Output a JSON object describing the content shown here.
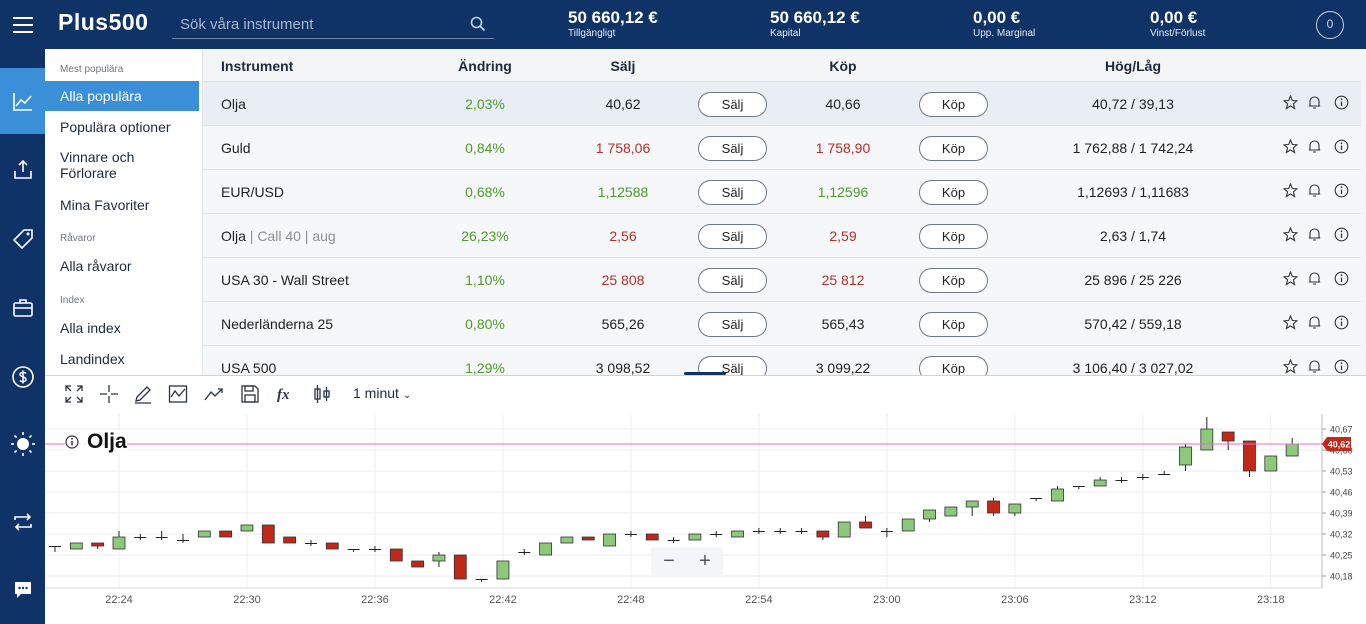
{
  "brand": {
    "logo_text": "Plus500"
  },
  "search": {
    "placeholder": "Sök våra instrument"
  },
  "stats": [
    {
      "value": "50 660,12 €",
      "label": "Tillgängligt"
    },
    {
      "value": "50 660,12 €",
      "label": "Kapital"
    },
    {
      "value": "0,00 €",
      "label": "Upp. Marginal"
    },
    {
      "value": "0,00 €",
      "label": "Vinst/Förlust"
    }
  ],
  "account": {
    "badge": "0"
  },
  "rail": [
    "chart-line-icon",
    "trade-arrows-icon",
    "tag-icon",
    "briefcase-icon",
    "dollar-circle-icon",
    "sun-icon",
    "transfer-icon",
    "chat-icon"
  ],
  "sidebar": {
    "sec_popular": "Mest populära",
    "popular_all": "Alla populära",
    "popular_options": "Populära optioner",
    "winners": "Vinnare och Förlorare",
    "favorites": "Mina Favoriter",
    "sec_commodities": "Råvaror",
    "commodities_all": "Alla råvaror",
    "sec_index": "Index",
    "index_all": "Alla index",
    "index_country": "Landindex"
  },
  "table": {
    "headers": {
      "instrument": "Instrument",
      "change": "Ändring",
      "sell": "Sälj",
      "buy": "Köp",
      "highlow": "Hög/Låg"
    },
    "sell_btn": "Sälj",
    "buy_btn": "Köp",
    "rows": [
      {
        "name": "Olja",
        "sub": "",
        "change": "2,03%",
        "sell": "40,62",
        "buy": "40,66",
        "price_color": "neutral",
        "highlow": "40,72 / 39,13"
      },
      {
        "name": "Guld",
        "sub": "",
        "change": "0,84%",
        "sell": "1 758,06",
        "buy": "1 758,90",
        "price_color": "red",
        "highlow": "1 762,88 / 1 742,24"
      },
      {
        "name": "EUR/USD",
        "sub": "",
        "change": "0,68%",
        "sell": "1,12588",
        "buy": "1,12596",
        "price_color": "green",
        "highlow": "1,12693 / 1,11683"
      },
      {
        "name": "Olja",
        "sub": " | Call 40 | aug",
        "change": "26,23%",
        "sell": "2,56",
        "buy": "2,59",
        "price_color": "red",
        "highlow": "2,63 / 1,74"
      },
      {
        "name": "USA 30 - Wall Street",
        "sub": "",
        "change": "1,10%",
        "sell": "25 808",
        "buy": "25 812",
        "price_color": "red",
        "highlow": "25 896 / 25 226"
      },
      {
        "name": "Nederländerna 25",
        "sub": "",
        "change": "0,80%",
        "sell": "565,26",
        "buy": "565,43",
        "price_color": "neutral",
        "highlow": "570,42 / 559,18"
      },
      {
        "name": "USA 500",
        "sub": "",
        "change": "1,29%",
        "sell": "3 098,52",
        "buy": "3 099,22",
        "price_color": "neutral",
        "highlow": "3 106,40 / 3 027,02"
      }
    ]
  },
  "chart": {
    "interval": "1 minut",
    "instrument_label": "Olja",
    "current_price": "40,62",
    "zoom_minus": "−",
    "zoom_plus": "+"
  },
  "chart_data": {
    "type": "candlestick",
    "x_labels": [
      "22:24",
      "22:30",
      "22:36",
      "22:42",
      "22:48",
      "22:54",
      "23:00",
      "23:06",
      "23:12",
      "23:18"
    ],
    "y_ticks": [
      "40,67",
      "40,60",
      "40,53",
      "40,46",
      "40,39",
      "40,32",
      "40,25",
      "40,18"
    ],
    "ylim": [
      40.14,
      40.72
    ],
    "current": 40.62,
    "colors": {
      "up": "#8cc97a",
      "down": "#c0281a",
      "price_line": "#e36bd6"
    },
    "candles": [
      [
        40.28,
        40.28,
        40.26,
        40.28
      ],
      [
        40.27,
        40.29,
        40.27,
        40.29
      ],
      [
        40.29,
        40.28,
        40.27,
        40.29
      ],
      [
        40.27,
        40.31,
        40.27,
        40.33
      ],
      [
        40.31,
        40.31,
        40.3,
        40.32
      ],
      [
        40.31,
        40.31,
        40.3,
        40.33
      ],
      [
        40.3,
        40.3,
        40.29,
        40.32
      ],
      [
        40.31,
        40.33,
        40.31,
        40.33
      ],
      [
        40.33,
        40.31,
        40.31,
        40.33
      ],
      [
        40.33,
        40.35,
        40.33,
        40.35
      ],
      [
        40.35,
        40.29,
        40.29,
        40.35
      ],
      [
        40.31,
        40.29,
        40.29,
        40.31
      ],
      [
        40.29,
        40.29,
        40.28,
        40.3
      ],
      [
        40.29,
        40.27,
        40.27,
        40.29
      ],
      [
        40.27,
        40.27,
        40.26,
        40.27
      ],
      [
        40.27,
        40.27,
        40.26,
        40.28
      ],
      [
        40.27,
        40.23,
        40.23,
        40.27
      ],
      [
        40.23,
        40.21,
        40.21,
        40.23
      ],
      [
        40.23,
        40.25,
        40.21,
        40.26
      ],
      [
        40.25,
        40.17,
        40.17,
        40.25
      ],
      [
        40.17,
        40.17,
        40.16,
        40.17
      ],
      [
        40.17,
        40.23,
        40.17,
        40.23
      ],
      [
        40.26,
        40.26,
        40.25,
        40.27
      ],
      [
        40.25,
        40.29,
        40.25,
        40.29
      ],
      [
        40.29,
        40.31,
        40.29,
        40.31
      ],
      [
        40.31,
        40.3,
        40.3,
        40.31
      ],
      [
        40.28,
        40.32,
        40.28,
        40.32
      ],
      [
        40.32,
        40.32,
        40.31,
        40.33
      ],
      [
        40.32,
        40.3,
        40.3,
        40.32
      ],
      [
        40.3,
        40.3,
        40.29,
        40.31
      ],
      [
        40.3,
        40.32,
        40.3,
        40.32
      ],
      [
        40.32,
        40.32,
        40.31,
        40.33
      ],
      [
        40.31,
        40.33,
        40.31,
        40.33
      ],
      [
        40.33,
        40.33,
        40.32,
        40.34
      ],
      [
        40.33,
        40.33,
        40.32,
        40.34
      ],
      [
        40.33,
        40.33,
        40.32,
        40.34
      ],
      [
        40.33,
        40.31,
        40.3,
        40.33
      ],
      [
        40.31,
        40.36,
        40.31,
        40.36
      ],
      [
        40.36,
        40.34,
        40.34,
        40.38
      ],
      [
        40.33,
        40.33,
        40.31,
        40.34
      ],
      [
        40.33,
        40.37,
        40.33,
        40.37
      ],
      [
        40.37,
        40.4,
        40.36,
        40.4
      ],
      [
        40.38,
        40.41,
        40.38,
        40.41
      ],
      [
        40.41,
        40.43,
        40.38,
        40.43
      ],
      [
        40.43,
        40.39,
        40.38,
        40.44
      ],
      [
        40.39,
        40.42,
        40.38,
        40.42
      ],
      [
        40.44,
        40.44,
        40.43,
        40.44
      ],
      [
        40.43,
        40.47,
        40.43,
        40.48
      ],
      [
        40.48,
        40.48,
        40.47,
        40.48
      ],
      [
        40.48,
        40.5,
        40.48,
        40.51
      ],
      [
        40.5,
        40.5,
        40.49,
        40.51
      ],
      [
        40.51,
        40.51,
        40.5,
        40.52
      ],
      [
        40.52,
        40.52,
        40.52,
        40.53
      ],
      [
        40.55,
        40.61,
        40.53,
        40.62
      ],
      [
        40.6,
        40.67,
        40.6,
        40.71
      ],
      [
        40.66,
        40.63,
        40.6,
        40.66
      ],
      [
        40.63,
        40.53,
        40.51,
        40.63
      ],
      [
        40.53,
        40.58,
        40.53,
        40.58
      ],
      [
        40.58,
        40.62,
        40.58,
        40.64
      ]
    ]
  }
}
